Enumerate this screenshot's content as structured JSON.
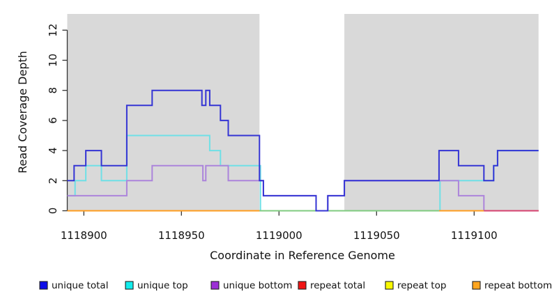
{
  "chart_data": {
    "type": "line",
    "subtype": "step-coverage-plot",
    "title": "",
    "xlabel": "Coordinate in Reference Genome",
    "ylabel": "Read Coverage Depth",
    "xlim": [
      1118891.5,
      1119133
    ],
    "ylim": [
      0,
      13
    ],
    "x_ticks": [
      1118900,
      1118950,
      1119000,
      1119050,
      1119100
    ],
    "y_ticks": [
      0,
      2,
      4,
      6,
      8,
      10,
      12
    ],
    "grid": false,
    "legend_position": "bottom",
    "plot_area_color": "#ffffff",
    "shaded_region_color": "#d9d9d9",
    "shaded_regions": [
      {
        "from": 1118891.5,
        "to": 1118990
      },
      {
        "from": 1119033.5,
        "to": 1119133
      }
    ],
    "x_end": 1119133,
    "series": [
      {
        "name": "unique total",
        "line_color": "#3434d4",
        "legend_color": "#0d0de8",
        "steps": [
          [
            1118891.5,
            2
          ],
          [
            1118895,
            3
          ],
          [
            1118901,
            4
          ],
          [
            1118909,
            3
          ],
          [
            1118922,
            7
          ],
          [
            1118935,
            8
          ],
          [
            1118960.5,
            7
          ],
          [
            1118962.5,
            8
          ],
          [
            1118964.5,
            7
          ],
          [
            1118970,
            6
          ],
          [
            1118974,
            5
          ],
          [
            1118990,
            2
          ],
          [
            1118992,
            1
          ],
          [
            1119019,
            0
          ],
          [
            1119025,
            1
          ],
          [
            1119033.5,
            2
          ],
          [
            1119082,
            4
          ],
          [
            1119092,
            3
          ],
          [
            1119105,
            2
          ],
          [
            1119110,
            3
          ],
          [
            1119112,
            4
          ]
        ]
      },
      {
        "name": "unique top",
        "line_color": "#6fe0e6",
        "legend_color": "#11eded",
        "steps": [
          [
            1118891.5,
            1
          ],
          [
            1118895.5,
            2
          ],
          [
            1118901,
            3
          ],
          [
            1118909,
            2
          ],
          [
            1118922,
            5
          ],
          [
            1118964.5,
            4
          ],
          [
            1118970,
            3
          ],
          [
            1118990.5,
            0
          ],
          [
            1119082.5,
            2
          ],
          [
            1119110,
            3
          ],
          [
            1119112,
            4
          ]
        ]
      },
      {
        "name": "unique bottom",
        "line_color": "#ac84db",
        "legend_color": "#9c2fd6",
        "steps": [
          [
            1118891.5,
            1
          ],
          [
            1118922,
            2
          ],
          [
            1118935,
            3
          ],
          [
            1118961,
            2
          ],
          [
            1118962.5,
            3
          ],
          [
            1118974,
            2
          ],
          [
            1118992,
            1
          ],
          [
            1119019,
            0
          ],
          [
            1119025,
            1
          ],
          [
            1119033.5,
            2
          ],
          [
            1119092,
            1
          ],
          [
            1119105,
            0
          ]
        ]
      },
      {
        "name": "repeat total",
        "line_color": "#f01414",
        "legend_color": "#f01414",
        "steps": [
          [
            1118891.5,
            0
          ]
        ]
      },
      {
        "name": "repeat top",
        "line_color": "#f8f800",
        "legend_color": "#f8f800",
        "steps": [
          [
            1118891.5,
            0
          ]
        ]
      },
      {
        "name": "repeat bottom",
        "line_color": "#ff9d1e",
        "legend_color": "#ffa51f",
        "steps": [
          [
            1118891.5,
            0
          ]
        ]
      }
    ],
    "baseline_rendered_segments": [
      {
        "from": 1118891.5,
        "to": 1118990,
        "color": "#ff9d1e"
      },
      {
        "from": 1118990,
        "to": 1119082,
        "color": "#7fcb7f"
      },
      {
        "from": 1119082,
        "to": 1119105,
        "color": "#ff9d1e"
      },
      {
        "from": 1119105,
        "to": 1119133,
        "color": "#d6416f"
      }
    ],
    "legend": [
      {
        "label": "unique total",
        "color": "#0d0de8"
      },
      {
        "label": "unique top",
        "color": "#11eded"
      },
      {
        "label": "unique bottom",
        "color": "#9c2fd6"
      },
      {
        "label": "repeat total",
        "color": "#f01414"
      },
      {
        "label": "repeat top",
        "color": "#f8f800"
      },
      {
        "label": "repeat bottom",
        "color": "#ffa51f"
      }
    ]
  }
}
